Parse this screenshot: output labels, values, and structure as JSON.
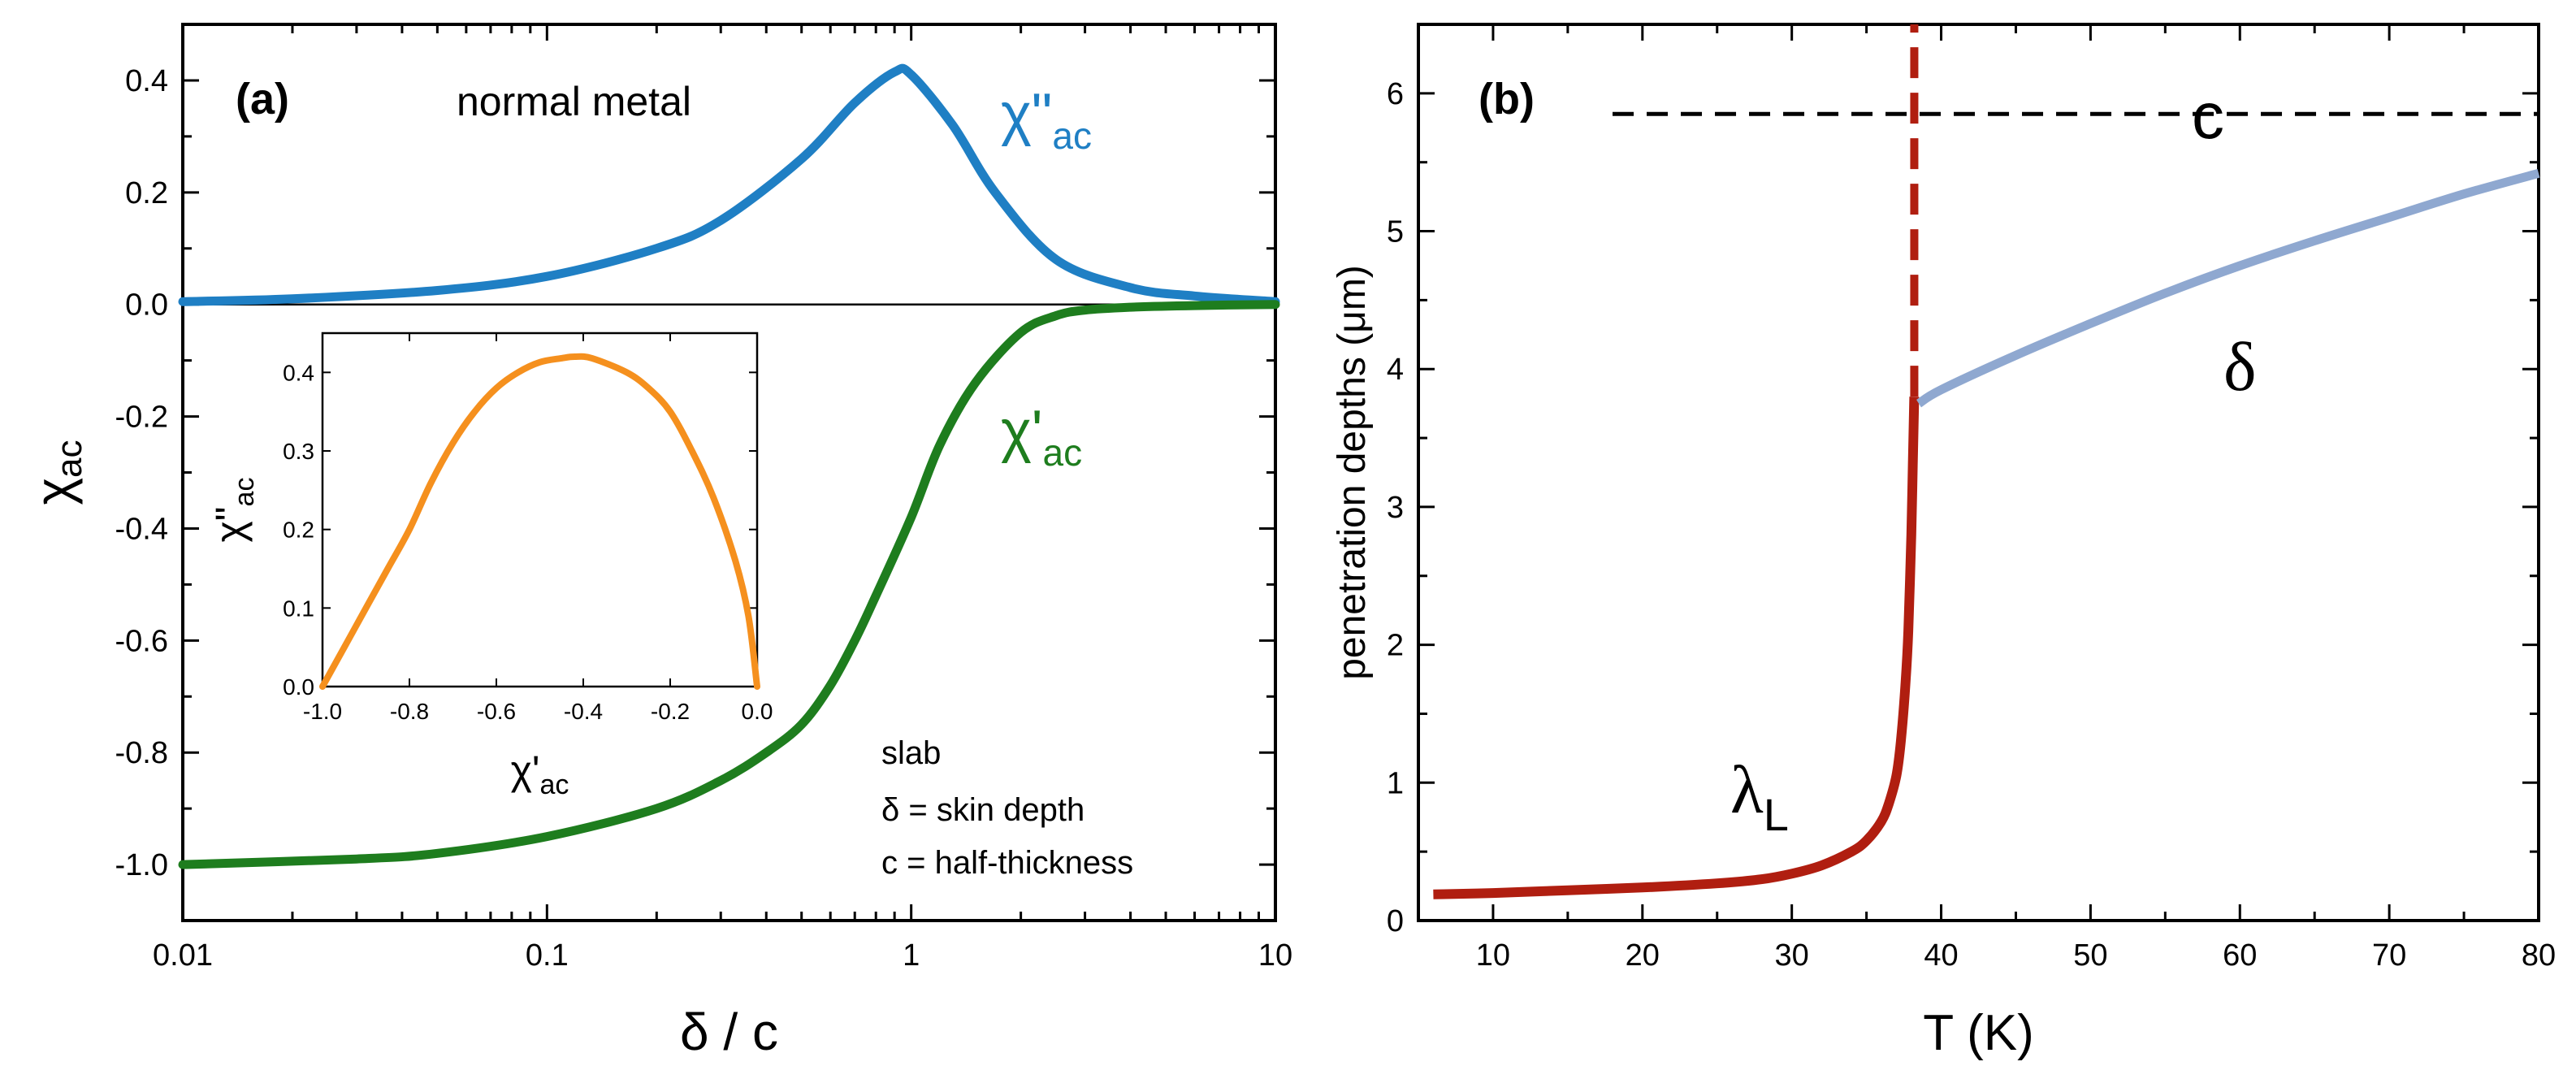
{
  "chart_data": [
    {
      "type": "line",
      "panel_label": "(a)",
      "title_annotation": "normal metal",
      "xlabel": "δ / c",
      "ylabel": "χ",
      "ylabel_sub": "ac",
      "xscale": "log",
      "xlim": [
        0.01,
        10
      ],
      "ylim": [
        -1.1,
        0.5
      ],
      "x_ticks": [
        0.01,
        0.1,
        1,
        10
      ],
      "x_tick_labels": [
        "0.01",
        "0.1",
        "1",
        "10"
      ],
      "y_ticks": [
        -1.0,
        -0.8,
        -0.6,
        -0.4,
        -0.2,
        0.0,
        0.2,
        0.4
      ],
      "y_tick_labels": [
        "-1.0",
        "-0.8",
        "-0.6",
        "-0.4",
        "-0.2",
        "0.0",
        "0.2",
        "0.4"
      ],
      "series": [
        {
          "name": "χ\"ac",
          "label_main": "χ\"",
          "label_sub": "ac",
          "color": "#1f7fc4",
          "x": [
            0.01,
            0.02,
            0.05,
            0.1,
            0.2,
            0.3,
            0.5,
            0.7,
            0.9,
            1.0,
            1.3,
            1.7,
            2.5,
            4.0,
            6.0,
            10.0
          ],
          "y": [
            0.005,
            0.01,
            0.025,
            0.05,
            0.1,
            0.15,
            0.26,
            0.36,
            0.415,
            0.41,
            0.32,
            0.2,
            0.08,
            0.03,
            0.015,
            0.005
          ]
        },
        {
          "name": "χ'ac",
          "label_main": "χ'",
          "label_sub": "ac",
          "color": "#1e7d1e",
          "x": [
            0.01,
            0.03,
            0.05,
            0.1,
            0.2,
            0.3,
            0.4,
            0.5,
            0.6,
            0.7,
            0.8,
            1.0,
            1.2,
            1.5,
            2.0,
            2.5,
            3.0,
            4.0,
            6.0,
            10.0
          ],
          "y": [
            -1.0,
            -0.99,
            -0.98,
            -0.95,
            -0.9,
            -0.85,
            -0.8,
            -0.75,
            -0.68,
            -0.6,
            -0.52,
            -0.38,
            -0.25,
            -0.14,
            -0.05,
            -0.02,
            -0.01,
            -0.005,
            -0.002,
            0.0
          ]
        }
      ],
      "annotations": [
        "slab",
        "δ = skin depth",
        "c = half-thickness"
      ],
      "inset": {
        "type": "line",
        "xlabel": "χ'",
        "xlabel_sub": "ac",
        "ylabel": "χ\"",
        "ylabel_sub": "ac",
        "xlim": [
          -1.0,
          0.0
        ],
        "ylim": [
          0.0,
          0.45
        ],
        "x_ticks": [
          -1.0,
          -0.8,
          -0.6,
          -0.4,
          -0.2,
          0.0
        ],
        "x_tick_labels": [
          "-1.0",
          "-0.8",
          "-0.6",
          "-0.4",
          "-0.2",
          "0.0"
        ],
        "y_ticks": [
          0.0,
          0.1,
          0.2,
          0.3,
          0.4
        ],
        "y_tick_labels": [
          "0.0",
          "0.1",
          "0.2",
          "0.3",
          "0.4"
        ],
        "series": [
          {
            "name": "χ\"ac vs χ'ac",
            "color": "#f5901e",
            "x": [
              -1.0,
              -0.95,
              -0.9,
              -0.85,
              -0.8,
              -0.75,
              -0.7,
              -0.65,
              -0.6,
              -0.55,
              -0.5,
              -0.45,
              -0.42,
              -0.38,
              -0.3,
              -0.25,
              -0.2,
              -0.15,
              -0.1,
              -0.05,
              -0.02,
              0.0
            ],
            "y": [
              0.0,
              0.05,
              0.1,
              0.15,
              0.2,
              0.26,
              0.31,
              0.35,
              0.38,
              0.4,
              0.413,
              0.418,
              0.42,
              0.418,
              0.4,
              0.38,
              0.35,
              0.3,
              0.24,
              0.16,
              0.09,
              0.0
            ]
          }
        ]
      }
    },
    {
      "type": "line",
      "panel_label": "(b)",
      "xlabel": "T  (K)",
      "ylabel": "penetration depths  (μm)",
      "xlim": [
        5,
        80
      ],
      "ylim": [
        0,
        6.5
      ],
      "x_ticks": [
        10,
        20,
        30,
        40,
        50,
        60,
        70,
        80
      ],
      "x_tick_labels": [
        "10",
        "20",
        "30",
        "40",
        "50",
        "60",
        "70",
        "80"
      ],
      "y_ticks": [
        0,
        1,
        2,
        3,
        4,
        5,
        6
      ],
      "y_tick_labels": [
        "0",
        "1",
        "2",
        "3",
        "4",
        "5",
        "6"
      ],
      "series": [
        {
          "name": "λL",
          "label_main": "λ",
          "label_sub": "L",
          "color": "#b01e10",
          "x": [
            6,
            10,
            15,
            20,
            25,
            28,
            30,
            32,
            34,
            35,
            36,
            36.5,
            37,
            37.3,
            37.6,
            37.8,
            38.0,
            38.1,
            38.2
          ],
          "y": [
            0.19,
            0.2,
            0.22,
            0.24,
            0.27,
            0.3,
            0.34,
            0.4,
            0.5,
            0.58,
            0.72,
            0.85,
            1.05,
            1.3,
            1.7,
            2.1,
            2.8,
            3.3,
            3.8
          ]
        },
        {
          "name": "Tc marker",
          "style": "dashed",
          "color": "#b01e10",
          "x": [
            38.2,
            38.2
          ],
          "y": [
            3.8,
            6.5
          ]
        },
        {
          "name": "δ",
          "label_main": "δ",
          "color": "#8fa8d0",
          "x": [
            38.5,
            40,
            45,
            50,
            55,
            60,
            65,
            70,
            75,
            80
          ],
          "y": [
            3.75,
            3.85,
            4.1,
            4.33,
            4.55,
            4.75,
            4.93,
            5.1,
            5.27,
            5.42
          ]
        },
        {
          "name": "c",
          "label_main": "c",
          "style": "dashed",
          "color": "#000000",
          "x": [
            18,
            80
          ],
          "y": [
            5.85,
            5.85
          ]
        }
      ]
    }
  ]
}
